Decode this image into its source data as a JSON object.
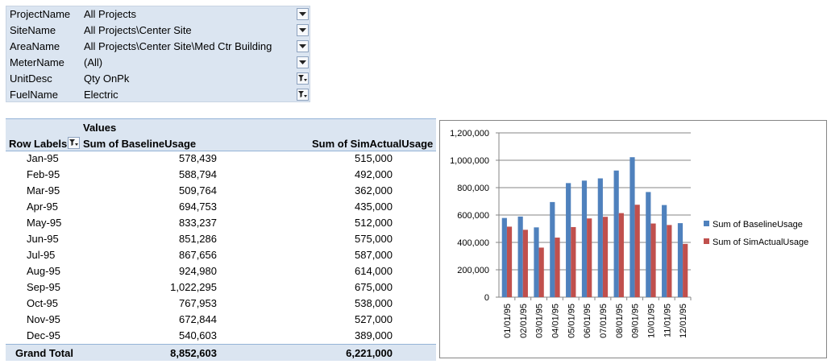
{
  "filters": [
    {
      "name": "ProjectName",
      "value": "All Projects",
      "filtered": false
    },
    {
      "name": "SiteName",
      "value": "All Projects\\Center Site",
      "filtered": false
    },
    {
      "name": "AreaName",
      "value": "All Projects\\Center Site\\Med Ctr Building",
      "filtered": false
    },
    {
      "name": "MeterName",
      "value": "(All)",
      "filtered": false
    },
    {
      "name": "UnitDesc",
      "value": "Qty OnPk",
      "filtered": true
    },
    {
      "name": "FuelName",
      "value": "Electric",
      "filtered": true
    }
  ],
  "pivot": {
    "values_header": "Values",
    "row_labels_header": "Row Labels",
    "col_baseline": "Sum of BaselineUsage",
    "col_sim": "Sum of SimActualUsage",
    "rows": [
      {
        "month": "Jan-95",
        "baseline": "578,439",
        "sim": "515,000"
      },
      {
        "month": "Feb-95",
        "baseline": "588,794",
        "sim": "492,000"
      },
      {
        "month": "Mar-95",
        "baseline": "509,764",
        "sim": "362,000"
      },
      {
        "month": "Apr-95",
        "baseline": "694,753",
        "sim": "435,000"
      },
      {
        "month": "May-95",
        "baseline": "833,237",
        "sim": "512,000"
      },
      {
        "month": "Jun-95",
        "baseline": "851,286",
        "sim": "575,000"
      },
      {
        "month": "Jul-95",
        "baseline": "867,656",
        "sim": "587,000"
      },
      {
        "month": "Aug-95",
        "baseline": "924,980",
        "sim": "614,000"
      },
      {
        "month": "Sep-95",
        "baseline": "1,022,295",
        "sim": "675,000"
      },
      {
        "month": "Oct-95",
        "baseline": "767,953",
        "sim": "538,000"
      },
      {
        "month": "Nov-95",
        "baseline": "672,844",
        "sim": "527,000"
      },
      {
        "month": "Dec-95",
        "baseline": "540,603",
        "sim": "389,000"
      }
    ],
    "grand_total_label": "Grand Total",
    "grand_total_baseline": "8,852,603",
    "grand_total_sim": "6,221,000"
  },
  "chart_data": {
    "type": "bar",
    "categories": [
      "01/01/95",
      "02/01/95",
      "03/01/95",
      "04/01/95",
      "05/01/95",
      "06/01/95",
      "07/01/95",
      "08/01/95",
      "09/01/95",
      "10/01/95",
      "11/01/95",
      "12/01/95"
    ],
    "series": [
      {
        "name": "Sum of BaselineUsage",
        "color": "#4f81bd",
        "values": [
          578439,
          588794,
          509764,
          694753,
          833237,
          851286,
          867656,
          924980,
          1022295,
          767953,
          672844,
          540603
        ]
      },
      {
        "name": "Sum of SimActualUsage",
        "color": "#c0504d",
        "values": [
          515000,
          492000,
          362000,
          435000,
          512000,
          575000,
          587000,
          614000,
          675000,
          538000,
          527000,
          389000
        ]
      }
    ],
    "ylim": [
      0,
      1200000
    ],
    "yticks": [
      0,
      200000,
      400000,
      600000,
      800000,
      1000000,
      1200000
    ],
    "ytick_labels": [
      "0",
      "200,000",
      "400,000",
      "600,000",
      "800,000",
      "1,000,000",
      "1,200,000"
    ],
    "legend_position": "right",
    "grid": true
  }
}
